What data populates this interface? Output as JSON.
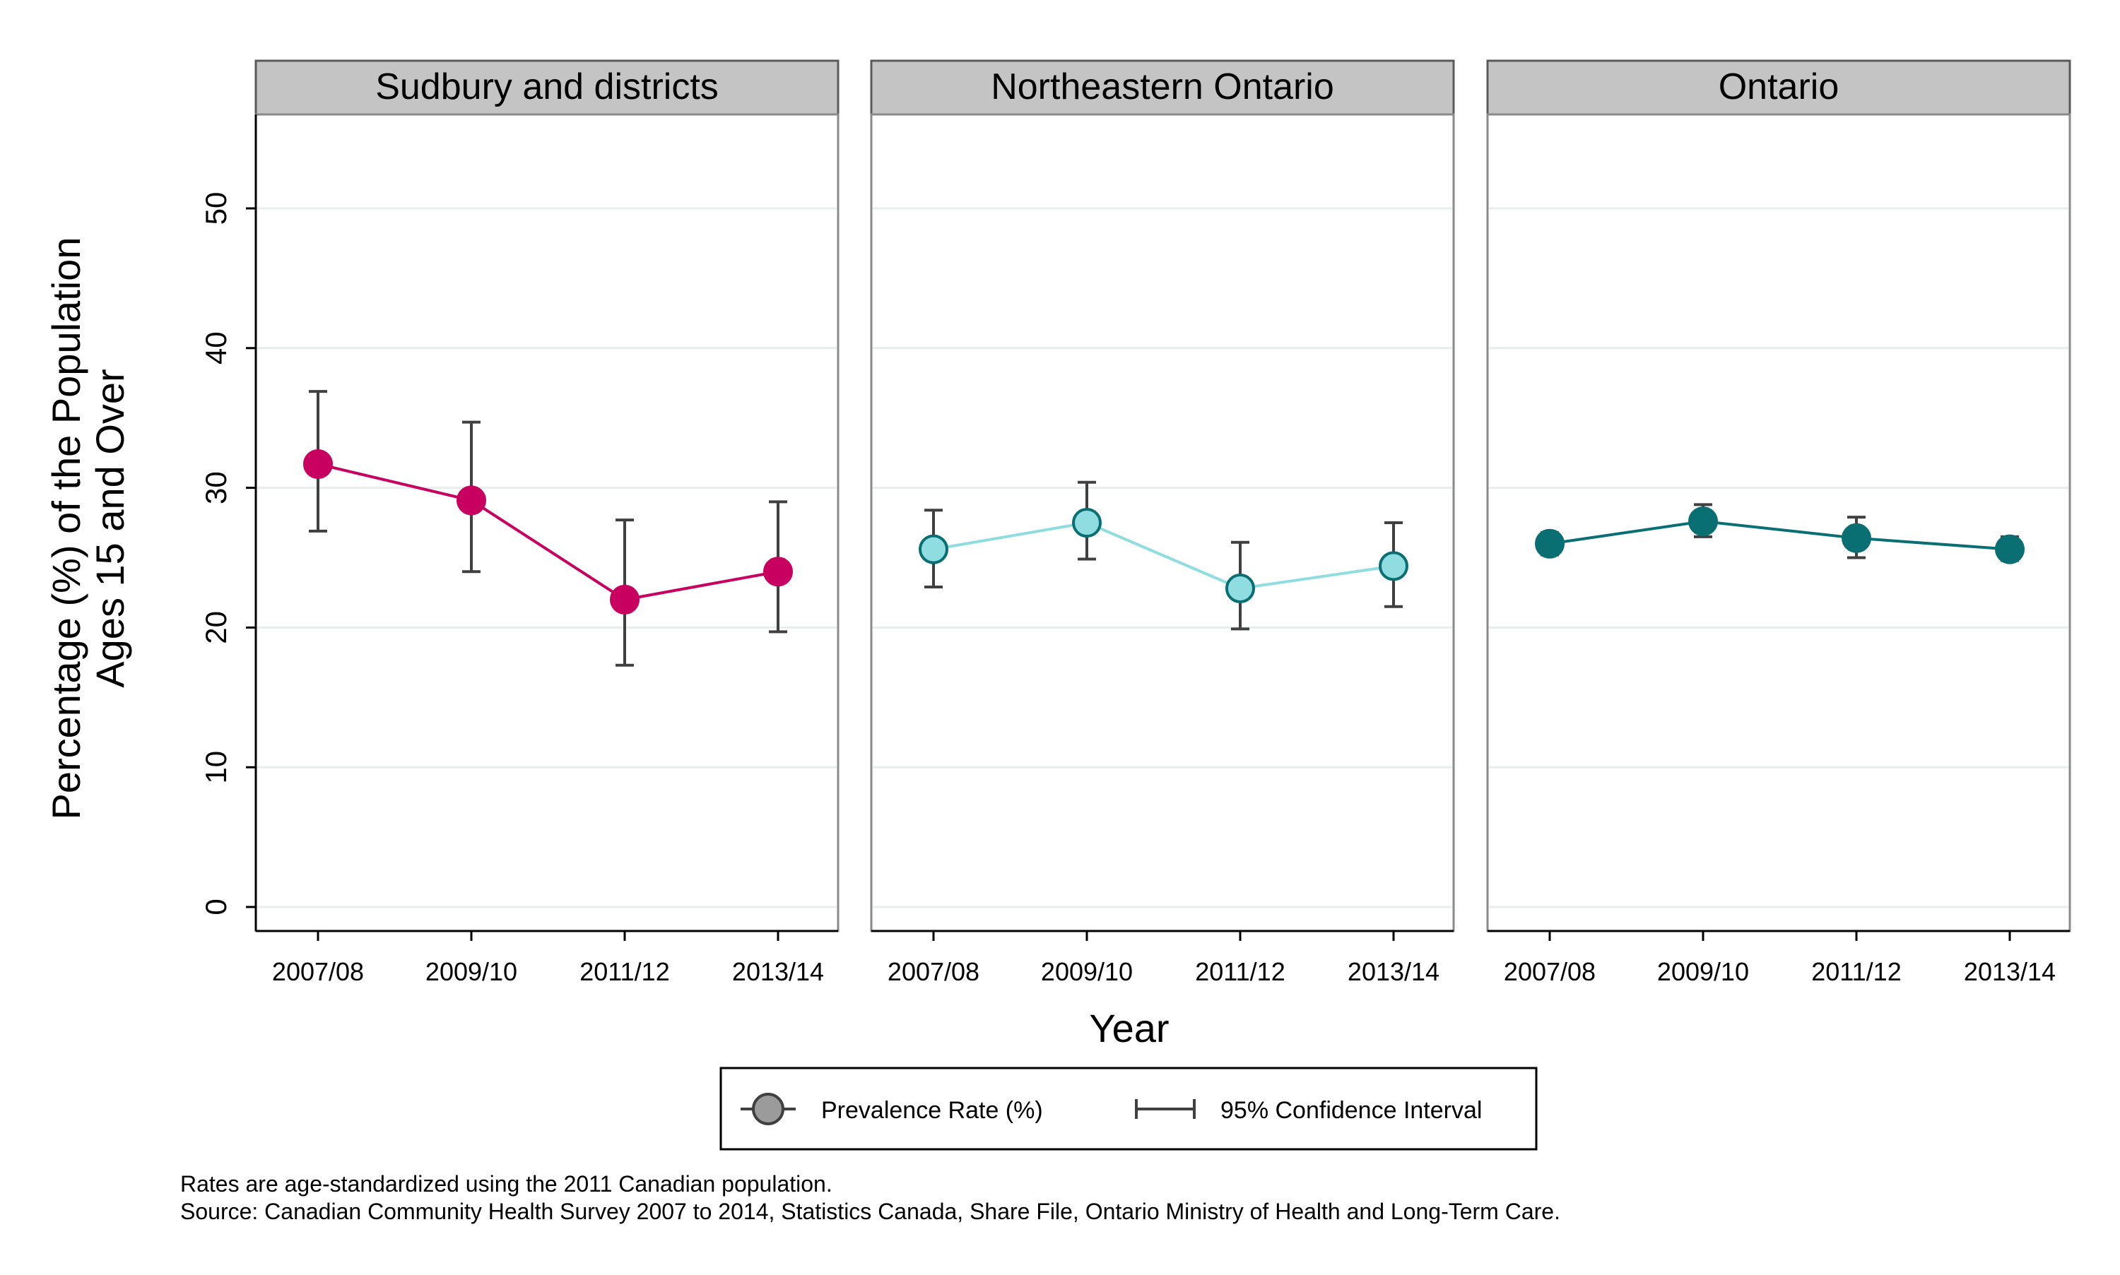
{
  "chart_data": {
    "type": "line",
    "panels": [
      {
        "title": "Sudbury and districts",
        "color": "#C8005F",
        "marker_fill": "#C8005F",
        "marker_stroke": "#C8005F",
        "values": [
          31.7,
          29.1,
          22.0,
          24.0
        ],
        "ci_lower": [
          26.9,
          24.0,
          17.3,
          19.7
        ],
        "ci_upper": [
          36.9,
          34.7,
          27.7,
          29.0
        ]
      },
      {
        "title": "Northeastern Ontario",
        "color": "#8FDDE0",
        "marker_fill": "#8FDDE0",
        "marker_stroke": "#0A6F73",
        "values": [
          25.6,
          27.5,
          22.8,
          24.4
        ],
        "ci_lower": [
          22.9,
          24.9,
          19.9,
          21.5
        ],
        "ci_upper": [
          28.4,
          30.4,
          26.1,
          27.5
        ]
      },
      {
        "title": "Ontario",
        "color": "#0A6F73",
        "marker_fill": "#0A6F73",
        "marker_stroke": "#0A6F73",
        "values": [
          26.0,
          27.6,
          26.4,
          25.6
        ],
        "ci_lower": [
          25.2,
          26.5,
          25.0,
          24.8
        ],
        "ci_upper": [
          26.8,
          28.8,
          27.9,
          26.5
        ]
      }
    ],
    "categories": [
      "2007/08",
      "2009/10",
      "2011/12",
      "2013/14"
    ],
    "ylim": [
      0,
      56
    ],
    "yticks": [
      0,
      10,
      20,
      30,
      40,
      50
    ],
    "xlabel": "Year",
    "ylabel_line1": "Percentage (%) of the Population",
    "ylabel_line2": "Ages 15 and Over",
    "grid": true,
    "legend": {
      "position": "bottom",
      "items": [
        {
          "label": "Prevalence Rate (%)",
          "symbol": "circle"
        },
        {
          "label": "95% Confidence Interval",
          "symbol": "capped-line"
        }
      ]
    },
    "footnotes": [
      "Rates are age-standardized using the 2011 Canadian population.",
      "Source: Canadian Community Health Survey 2007 to 2014, Statistics Canada, Share File, Ontario Ministry of Health and Long-Term Care."
    ]
  }
}
